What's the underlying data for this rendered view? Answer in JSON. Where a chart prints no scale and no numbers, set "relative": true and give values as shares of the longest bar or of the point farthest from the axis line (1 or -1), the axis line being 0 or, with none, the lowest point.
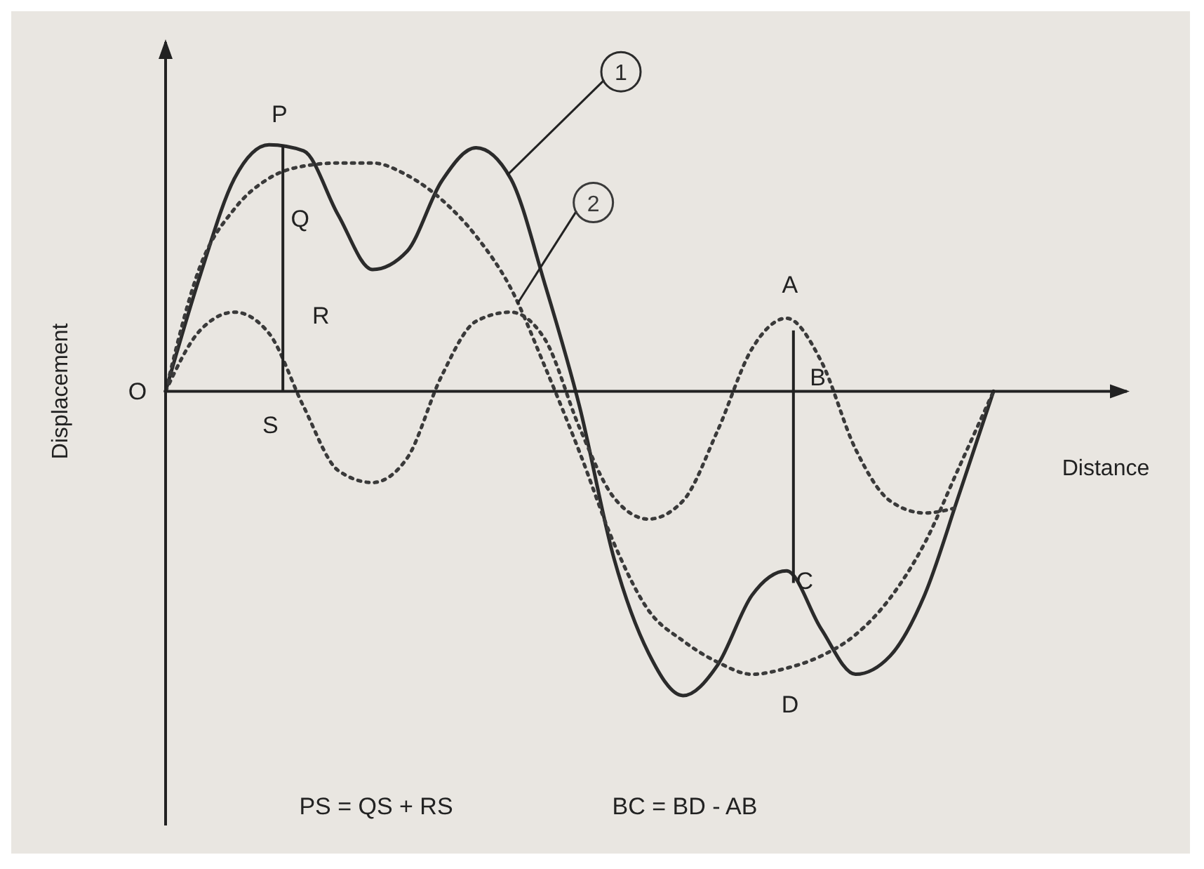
{
  "chart_data": {
    "type": "line",
    "relative": true,
    "xlabel": "Distance",
    "ylabel": "Displacement",
    "marker": "none",
    "categories": [
      null,
      null,
      null,
      null,
      null,
      null,
      null,
      null,
      null,
      null,
      null,
      null,
      null,
      null,
      null,
      null,
      null,
      null,
      null,
      null,
      null,
      null,
      null,
      null,
      null
    ],
    "series": [
      {
        "name": "1",
        "color": "#2b2b2b",
        "line_style": "solid",
        "values": [
          0,
          0.38,
          0.7,
          0.81,
          0.79,
          0.58,
          0.4,
          0.46,
          0.69,
          0.8,
          0.7,
          0.35,
          -0.05,
          -0.55,
          -0.86,
          -1,
          -0.9,
          -0.67,
          -0.59,
          -0.78,
          -0.93,
          -0.87,
          -0.67,
          -0.34,
          0
        ]
      },
      {
        "name": "2",
        "color": "#3a3a3a",
        "line_style": "dotted",
        "values": [
          0,
          0.41,
          0.6,
          0.7,
          0.74,
          0.75,
          0.75,
          0.71,
          0.63,
          0.51,
          0.34,
          0.08,
          -0.2,
          -0.5,
          -0.72,
          -0.82,
          -0.89,
          -0.93,
          -0.91,
          -0.87,
          -0.8,
          -0.68,
          -0.5,
          -0.25,
          0
        ]
      },
      {
        "color": "#3a3a3a",
        "line_style": "dotted",
        "values": [
          0,
          0.2,
          0.26,
          0.19,
          -0.05,
          -0.26,
          -0.3,
          -0.22,
          0.05,
          0.23,
          0.26,
          0.17,
          -0.12,
          -0.35,
          -0.42,
          -0.36,
          -0.13,
          0.14,
          0.24,
          0.1,
          -0.19,
          -0.36,
          -0.4,
          -0.38,
          null
        ]
      }
    ],
    "annotations": [
      "O",
      "P",
      "Q",
      "R",
      "S",
      "A",
      "B",
      "C",
      "D",
      "PS = QS + RS",
      "BC = BD - AB"
    ]
  }
}
